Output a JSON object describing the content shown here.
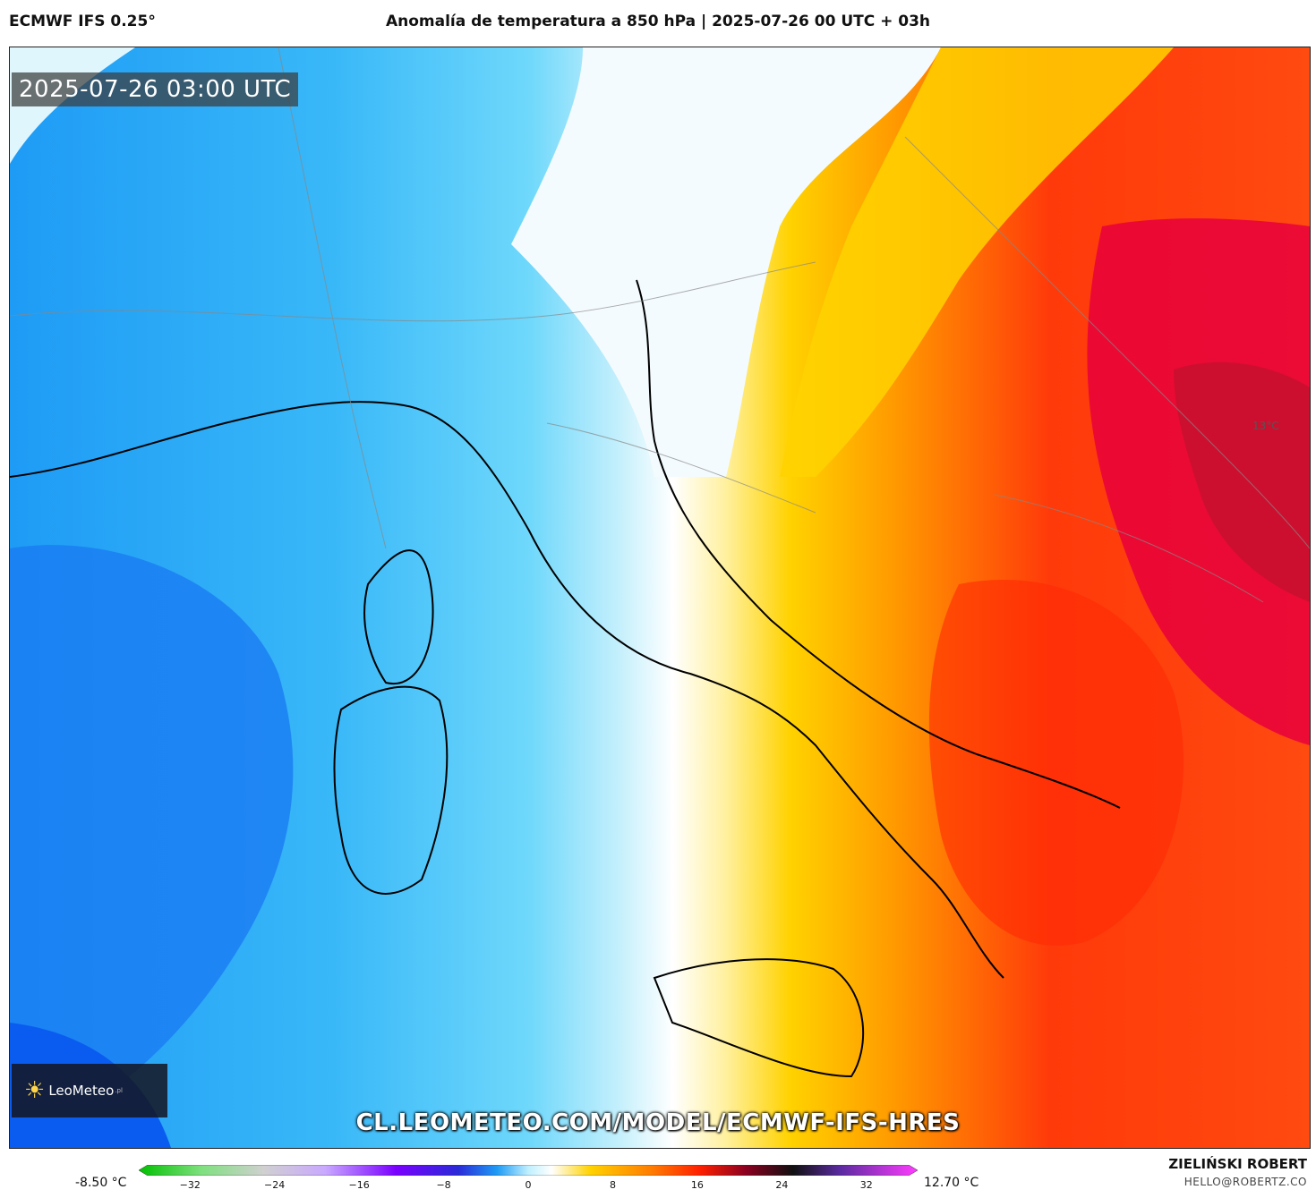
{
  "header": {
    "model": "ECMWF IFS 0.25°",
    "title": "Anomalía de temperatura a 850 hPa | 2025-07-26 00 UTC + 03h"
  },
  "map": {
    "timestamp": "2025-07-26 03:00 UTC",
    "value_label": "13°C",
    "url": "CL.LEOMETEO.COM/MODEL/ECMWF-IFS-HRES",
    "logo_text": "LeoMeteo",
    "logo_suffix": ".pl",
    "colors": {
      "cold_deep": "#0a5cf0",
      "cold": "#1e9bf5",
      "cool": "#5fd2fa",
      "cool_light": "#aee9fb",
      "neutral": "#ffffff",
      "warm_light": "#fff1a0",
      "warm": "#ffd200",
      "orange": "#ff9a00",
      "red": "#ff3a0a",
      "hot": "#e8003c"
    }
  },
  "colorbar": {
    "min_label": "-8.50 °C",
    "max_label": "12.70 °C",
    "ticks": [
      "−32",
      "−24",
      "−16",
      "−8",
      "0",
      "8",
      "16",
      "24",
      "32"
    ],
    "tick_values": [
      -32,
      -24,
      -16,
      -8,
      0,
      8,
      16,
      24,
      32
    ],
    "range": [
      -36,
      36
    ]
  },
  "footer": {
    "author": "ZIELIŃSKI ROBERT",
    "email": "HELLO@ROBERTZ.CO"
  }
}
